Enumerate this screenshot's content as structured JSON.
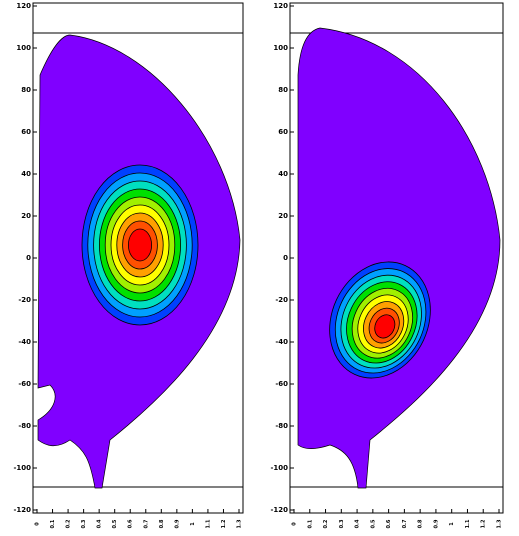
{
  "chart_data": [
    {
      "type": "contour",
      "ylim": [
        -120,
        120
      ],
      "yticks": [
        120,
        100,
        80,
        60,
        40,
        20,
        0,
        -20,
        -40,
        -60,
        -80,
        -100,
        -120
      ],
      "xlim": [
        0,
        1.3
      ],
      "xticks": [
        0,
        0.1,
        0.2,
        0.3,
        0.4,
        0.5,
        0.6,
        0.7,
        0.8,
        0.9,
        1,
        1.1,
        1.2,
        1.3
      ],
      "colors": [
        "#8000ff",
        "#0040ff",
        "#00a0ff",
        "#00e0c0",
        "#00e000",
        "#a0f000",
        "#ffff00",
        "#ffa000",
        "#ff5000",
        "#ff0000"
      ]
    },
    {
      "type": "contour",
      "ylim": [
        -120,
        120
      ],
      "yticks": [
        120,
        100,
        80,
        60,
        40,
        20,
        0,
        -20,
        -40,
        -60,
        -80,
        -100,
        -120
      ],
      "xlim": [
        0,
        1.3
      ],
      "xticks": [
        0,
        0.1,
        0.2,
        0.3,
        0.4,
        0.5,
        0.6,
        0.7,
        0.8,
        0.9,
        1,
        1.1,
        1.2,
        1.3
      ],
      "colors": [
        "#8000ff",
        "#0040ff",
        "#00a0ff",
        "#00e0c0",
        "#00e000",
        "#a0f000",
        "#ffff00",
        "#ffa000",
        "#ff5000",
        "#ff0000"
      ]
    }
  ]
}
